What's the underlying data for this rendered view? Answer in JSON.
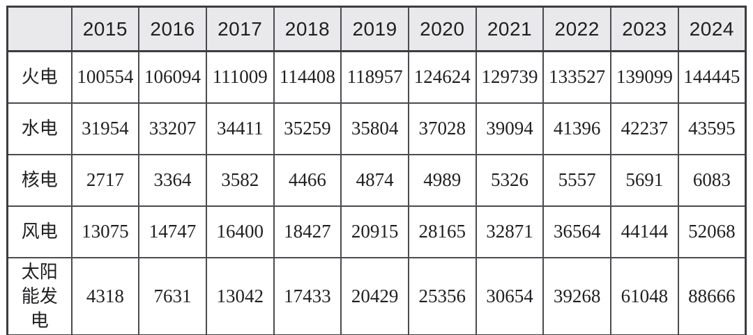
{
  "chart_data": {
    "type": "table",
    "corner_label": "",
    "categories": [
      "2015",
      "2016",
      "2017",
      "2018",
      "2019",
      "2020",
      "2021",
      "2022",
      "2023",
      "2024"
    ],
    "series": [
      {
        "name": "火电",
        "values": [
          100554,
          106094,
          111009,
          114408,
          118957,
          124624,
          129739,
          133527,
          139099,
          144445
        ]
      },
      {
        "name": "水电",
        "values": [
          31954,
          33207,
          34411,
          35259,
          35804,
          37028,
          39094,
          41396,
          42237,
          43595
        ]
      },
      {
        "name": "核电",
        "values": [
          2717,
          3364,
          3582,
          4466,
          4874,
          4989,
          5326,
          5557,
          5691,
          6083
        ]
      },
      {
        "name": "风电",
        "values": [
          13075,
          14747,
          16400,
          18427,
          20915,
          28165,
          32871,
          36564,
          44144,
          52068
        ]
      },
      {
        "name": "太阳能发电",
        "values": [
          4318,
          7631,
          13042,
          17433,
          20429,
          25356,
          30654,
          39268,
          61048,
          88666
        ]
      }
    ],
    "layout": {
      "header_background": "#e9e9eb",
      "border_color": "#4b4b50",
      "outer_border_color": "#3c3c41",
      "text_color": "#1f1f22",
      "grid": "on",
      "legend_position": "none"
    }
  }
}
